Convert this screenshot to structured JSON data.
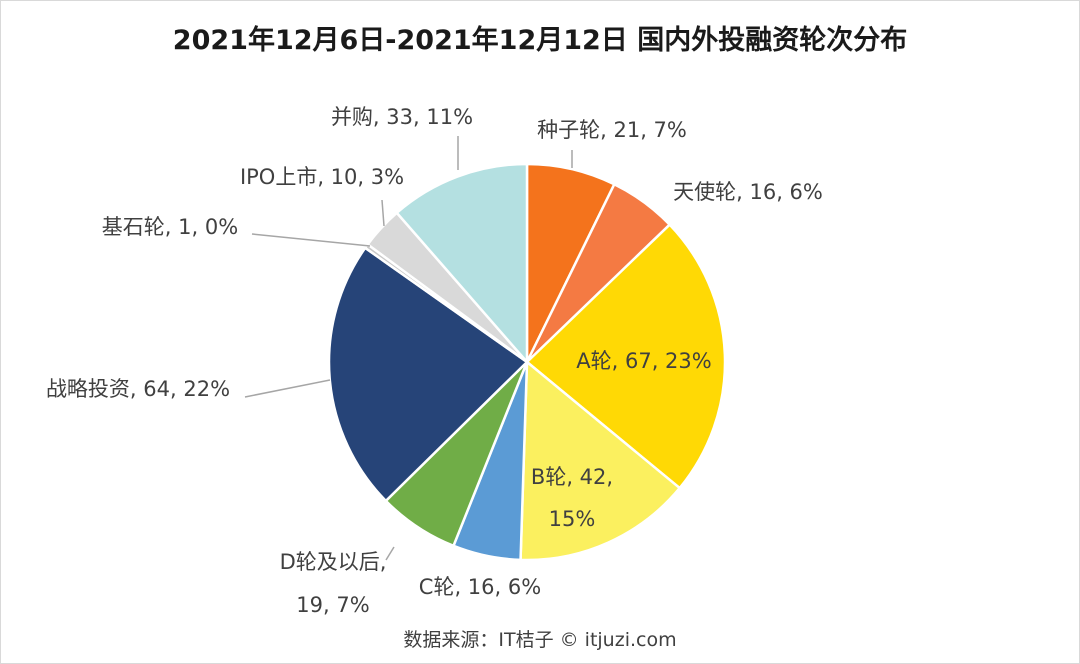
{
  "chart_data": {
    "type": "pie",
    "title": "2021年12月6日-2021年12月12日 国内外投融资轮次分布",
    "slices": [
      {
        "label": "种子轮",
        "value": 21,
        "percent": "7%",
        "color": "#f4731c",
        "text": "种子轮, 21, 7%"
      },
      {
        "label": "天使轮",
        "value": 16,
        "percent": "6%",
        "color": "#f47a43",
        "text": "天使轮, 16, 6%"
      },
      {
        "label": "A轮",
        "value": 67,
        "percent": "23%",
        "color": "#ffd905",
        "text": "A轮, 67, 23%"
      },
      {
        "label": "B轮",
        "value": 42,
        "percent": "15%",
        "color": "#fbf05f",
        "text": [
          "B轮, 42,",
          "15%"
        ]
      },
      {
        "label": "C轮",
        "value": 16,
        "percent": "6%",
        "color": "#5b9bd5",
        "text": "C轮, 16, 6%"
      },
      {
        "label": "D轮及以后",
        "value": 19,
        "percent": "7%",
        "color": "#70ad47",
        "text": [
          "D轮及以后,",
          "19, 7%"
        ]
      },
      {
        "label": "战略投资",
        "value": 64,
        "percent": "22%",
        "color": "#264478",
        "text": "战略投资, 64, 22%"
      },
      {
        "label": "基石轮",
        "value": 1,
        "percent": "0%",
        "color": "#c9c9c9",
        "text": "基石轮, 1, 0%"
      },
      {
        "label": "IPO上市",
        "value": 10,
        "percent": "3%",
        "color": "#d9d9d9",
        "text": "IPO上市, 10, 3%"
      },
      {
        "label": "并购",
        "value": 33,
        "percent": "11%",
        "color": "#b4e0e1",
        "text": "并购, 33, 11%"
      }
    ]
  },
  "source": "数据来源：IT桔子 © itjuzi.com"
}
